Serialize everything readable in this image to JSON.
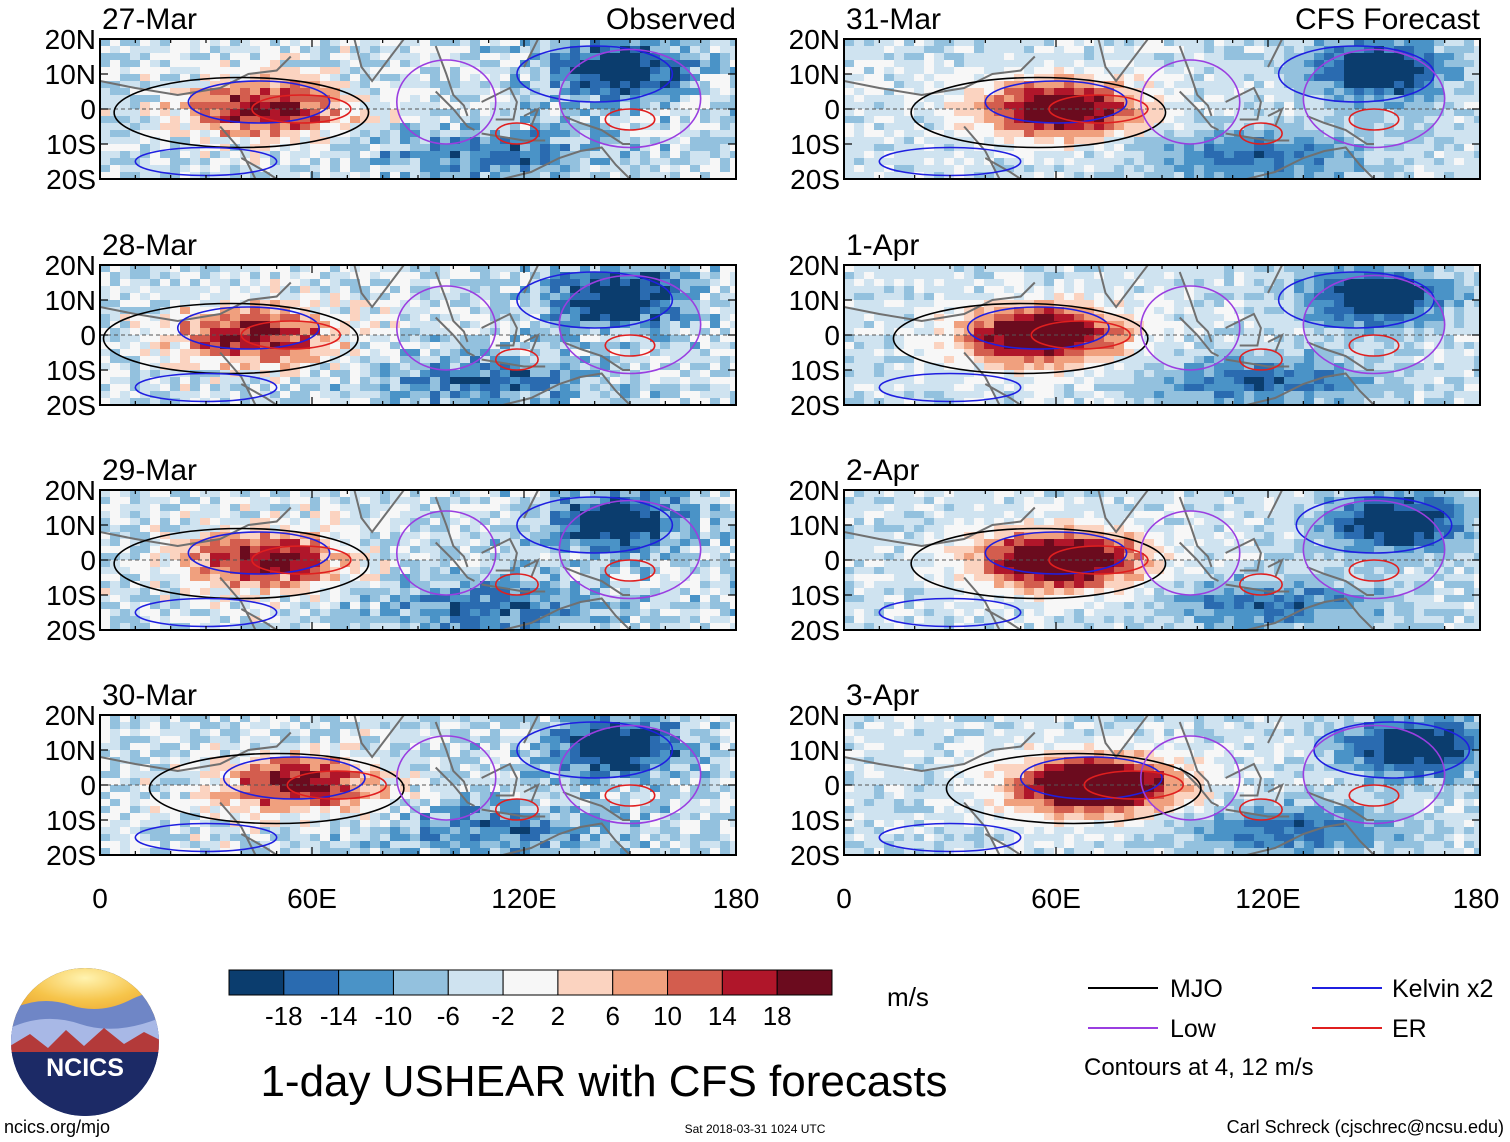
{
  "chart_data": {
    "type": "heatmap",
    "title": "1-day USHEAR with CFS forecasts",
    "variable": "USHEAR",
    "units": "m/s",
    "lon_range": [
      0,
      180
    ],
    "lat_range": [
      -20,
      20
    ],
    "x_ticks": [
      "0",
      "60E",
      "120E",
      "180"
    ],
    "y_ticks": [
      "20N",
      "10N",
      "0",
      "10S",
      "20S"
    ],
    "colorbar_labels": [
      "-18",
      "-14",
      "-10",
      "-6",
      "-2",
      "2",
      "6",
      "10",
      "14",
      "18"
    ],
    "colorbar_colors": [
      "#0b3d6e",
      "#2a6bb0",
      "#4a93c7",
      "#93c1de",
      "#cfe3f0",
      "#f7f7f7",
      "#fbd3c0",
      "#f0a07e",
      "#d35d4e",
      "#b0162a",
      "#6b0b1e"
    ],
    "observed_label": "Observed",
    "forecast_label": "CFS Forecast",
    "observed_dates": [
      "27-Mar",
      "28-Mar",
      "29-Mar",
      "30-Mar"
    ],
    "forecast_dates": [
      "31-Mar",
      "1-Apr",
      "2-Apr",
      "3-Apr"
    ],
    "contour_note": "Contours at 4, 12 m/s",
    "legend": [
      {
        "label": "MJO",
        "color": "#000000"
      },
      {
        "label": "Kelvin x2",
        "color": "#1f1fe0"
      },
      {
        "label": "Low",
        "color": "#9a3ee0"
      },
      {
        "label": "ER",
        "color": "#e01f1f"
      }
    ],
    "positive_anomaly_center_lon_by_panel": [
      45,
      42,
      45,
      55,
      60,
      55,
      60,
      70
    ],
    "negative_anomaly_center_lon_by_panel": [
      145,
      145,
      145,
      145,
      150,
      150,
      155,
      160
    ]
  },
  "logo": {
    "text": "NCICS"
  },
  "footer": {
    "url": "ncics.org/mjo",
    "timestamp": "Sat 2018-03-31 1024 UTC",
    "credit": "Carl Schreck (cjschrec@ncsu.edu)"
  }
}
